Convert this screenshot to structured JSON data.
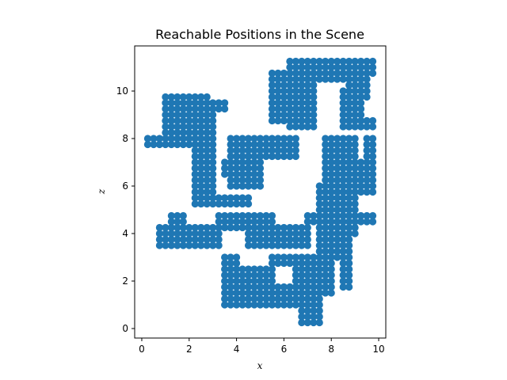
{
  "chart_data": {
    "type": "scatter",
    "title": "Reachable Positions in the Scene",
    "xlabel": "x",
    "ylabel": "z",
    "xlim": [
      -0.3,
      10.3
    ],
    "ylim": [
      -0.4,
      11.9
    ],
    "xticks": [
      "0",
      "2",
      "4",
      "6",
      "8",
      "10"
    ],
    "yticks": [
      "0",
      "2",
      "4",
      "6",
      "8",
      "10"
    ],
    "grid": false,
    "legend": "none",
    "marker_color": "#1f77b4",
    "grid_step": 0.25,
    "series": [
      {
        "regions": [
          {
            "x": [
              0.25,
              1.0
            ],
            "z": [
              7.75,
              8.0
            ]
          },
          {
            "x": [
              1.0,
              2.75
            ],
            "z": [
              7.75,
              9.75
            ]
          },
          {
            "x": [
              2.75,
              3.5
            ],
            "z": [
              9.25,
              9.5
            ]
          },
          {
            "x": [
              2.25,
              3.0
            ],
            "z": [
              5.25,
              9.0
            ]
          },
          {
            "x": [
              3.0,
              4.5
            ],
            "z": [
              5.25,
              5.5
            ]
          },
          {
            "x": [
              3.75,
              6.5
            ],
            "z": [
              7.25,
              8.0
            ]
          },
          {
            "x": [
              3.75,
              5.0
            ],
            "z": [
              6.0,
              7.25
            ]
          },
          {
            "x": [
              3.5,
              4.0
            ],
            "z": [
              6.5,
              7.0
            ]
          },
          {
            "x": [
              5.5,
              6.5
            ],
            "z": [
              7.25,
              7.75
            ]
          },
          {
            "x": [
              5.5,
              7.25
            ],
            "z": [
              8.75,
              10.75
            ]
          },
          {
            "x": [
              6.25,
              7.25
            ],
            "z": [
              8.5,
              11.25
            ]
          },
          {
            "x": [
              7.0,
              8.5
            ],
            "z": [
              10.5,
              11.25
            ]
          },
          {
            "x": [
              8.5,
              9.75
            ],
            "z": [
              10.75,
              11.25
            ]
          },
          {
            "x": [
              8.75,
              9.5
            ],
            "z": [
              9.75,
              11.0
            ]
          },
          {
            "x": [
              8.5,
              9.25
            ],
            "z": [
              8.5,
              10.0
            ]
          },
          {
            "x": [
              9.25,
              9.75
            ],
            "z": [
              8.5,
              8.75
            ]
          },
          {
            "x": [
              7.75,
              9.0
            ],
            "z": [
              4.0,
              8.0
            ]
          },
          {
            "x": [
              9.0,
              9.75
            ],
            "z": [
              5.75,
              7.0
            ]
          },
          {
            "x": [
              9.5,
              9.75
            ],
            "z": [
              7.25,
              8.0
            ]
          },
          {
            "x": [
              7.5,
              8.25
            ],
            "z": [
              3.0,
              6.0
            ]
          },
          {
            "x": [
              8.5,
              8.75
            ],
            "z": [
              1.75,
              4.0
            ]
          },
          {
            "x": [
              7.0,
              9.75
            ],
            "z": [
              4.5,
              4.75
            ]
          },
          {
            "x": [
              1.25,
              1.75
            ],
            "z": [
              3.5,
              4.75
            ]
          },
          {
            "x": [
              0.75,
              3.25
            ],
            "z": [
              3.5,
              4.25
            ]
          },
          {
            "x": [
              3.25,
              5.5
            ],
            "z": [
              4.25,
              4.75
            ]
          },
          {
            "x": [
              4.5,
              7.0
            ],
            "z": [
              3.5,
              4.0
            ]
          },
          {
            "x": [
              5.0,
              7.0
            ],
            "z": [
              3.5,
              4.25
            ]
          },
          {
            "x": [
              3.5,
              4.0
            ],
            "z": [
              2.0,
              3.0
            ]
          },
          {
            "x": [
              3.5,
              7.0
            ],
            "z": [
              1.0,
              2.5
            ]
          },
          {
            "x": [
              5.5,
              7.5
            ],
            "z": [
              1.5,
              3.0
            ]
          },
          {
            "x": [
              6.75,
              7.5
            ],
            "z": [
              0.25,
              1.25
            ]
          },
          {
            "x": [
              7.5,
              8.0
            ],
            "z": [
              1.5,
              3.0
            ]
          }
        ],
        "holes": [
          {
            "x": [
              5.75,
              6.25
            ],
            "z": [
              2.0,
              2.5
            ]
          }
        ]
      }
    ]
  }
}
